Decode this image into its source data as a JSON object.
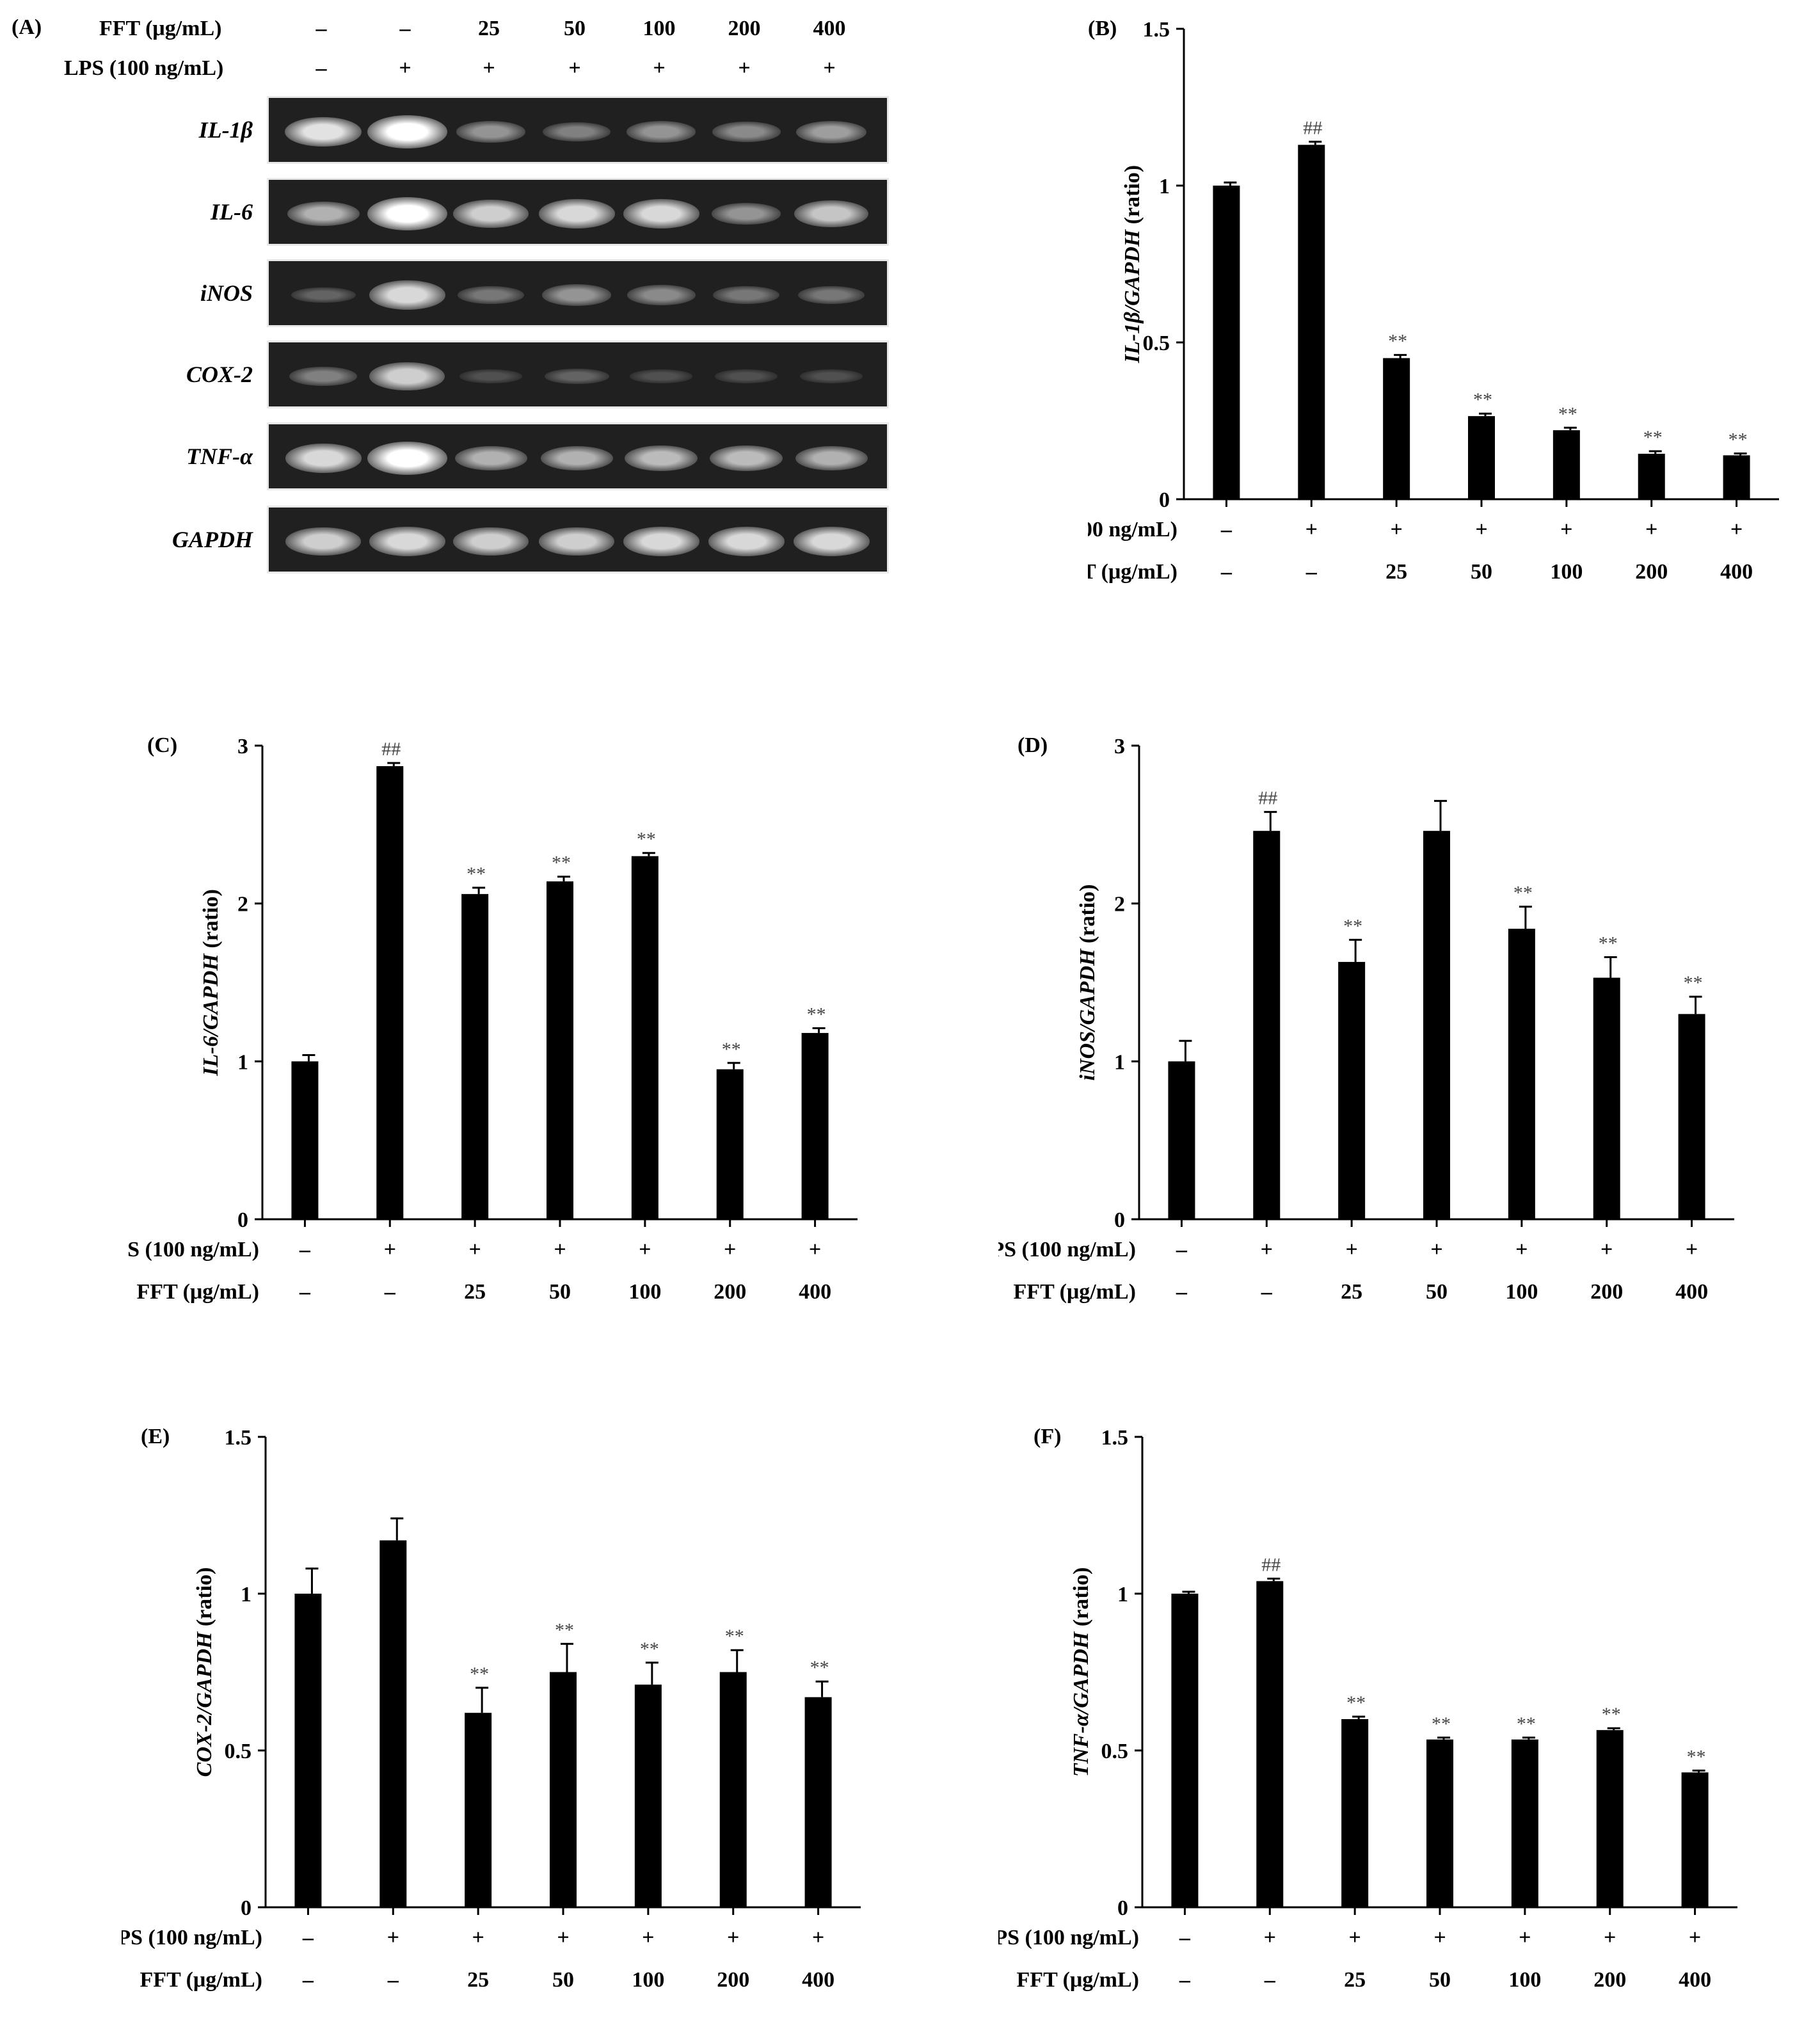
{
  "panel_labels": [
    "(A)",
    "(B)",
    "(C)",
    "(D)",
    "(E)",
    "(F)"
  ],
  "gel": {
    "rows": [
      {
        "label": "IL-1β",
        "bands": [
          0.85,
          1.0,
          0.45,
          0.35,
          0.45,
          0.4,
          0.5
        ]
      },
      {
        "label": "IL-6",
        "bands": [
          0.6,
          1.0,
          0.75,
          0.8,
          0.8,
          0.45,
          0.7
        ]
      },
      {
        "label": "iNOS",
        "bands": [
          0.2,
          0.8,
          0.3,
          0.45,
          0.4,
          0.3,
          0.3
        ]
      },
      {
        "label": "COX-2",
        "bands": [
          0.35,
          0.75,
          0.1,
          0.2,
          0.1,
          0.1,
          0.1
        ]
      },
      {
        "label": "TNF-α",
        "bands": [
          0.8,
          1.0,
          0.6,
          0.6,
          0.65,
          0.65,
          0.6
        ]
      },
      {
        "label": "GAPDH",
        "bands": [
          0.75,
          0.8,
          0.75,
          0.75,
          0.8,
          0.8,
          0.8
        ]
      }
    ]
  },
  "treatments": {
    "fft_label": "FFT (μg/mL)",
    "lps_label": "LPS (100 ng/mL)",
    "fft": [
      "–",
      "–",
      "25",
      "50",
      "100",
      "200",
      "400"
    ],
    "lps": [
      "–",
      "+",
      "+",
      "+",
      "+",
      "+",
      "+"
    ]
  },
  "chart_data": [
    {
      "type": "bar",
      "panel": "(B)",
      "ylabel_italic": "IL-1β/GAPDH",
      "ylabel_rest": " (ratio)",
      "ylim": [
        0,
        1.5
      ],
      "yticks": [
        "0",
        "0.5",
        "1",
        "1.5"
      ],
      "ytick_values": [
        0,
        0.5,
        1,
        1.5
      ],
      "values": [
        1.0,
        1.13,
        0.45,
        0.265,
        0.22,
        0.145,
        0.14
      ],
      "errors": [
        0.01,
        0.01,
        0.01,
        0.008,
        0.008,
        0.008,
        0.006
      ],
      "marks": [
        "",
        "##",
        "**",
        "**",
        "**",
        "**",
        "**"
      ]
    },
    {
      "type": "bar",
      "panel": "(C)",
      "ylabel_italic": "IL-6/GAPDH",
      "ylabel_rest": " (ratio)",
      "ylim": [
        0,
        3
      ],
      "yticks": [
        "0",
        "1",
        "2",
        "3"
      ],
      "ytick_values": [
        0,
        1,
        2,
        3
      ],
      "values": [
        1.0,
        2.87,
        2.06,
        2.14,
        2.3,
        0.95,
        1.18
      ],
      "errors": [
        0.04,
        0.02,
        0.04,
        0.03,
        0.02,
        0.04,
        0.03
      ],
      "marks": [
        "",
        "##",
        "**",
        "**",
        "**",
        "**",
        "**"
      ]
    },
    {
      "type": "bar",
      "panel": "(D)",
      "ylabel_italic": "iNOS/GAPDH",
      "ylabel_rest": " (ratio)",
      "ylim": [
        0,
        3
      ],
      "yticks": [
        "0",
        "1",
        "2",
        "3"
      ],
      "ytick_values": [
        0,
        1,
        2,
        3
      ],
      "values": [
        1.0,
        2.46,
        1.63,
        2.46,
        1.84,
        1.53,
        1.3
      ],
      "errors": [
        0.13,
        0.12,
        0.14,
        0.19,
        0.14,
        0.13,
        0.11
      ],
      "marks": [
        "",
        "##",
        "**",
        "",
        "**",
        "**",
        "**"
      ]
    },
    {
      "type": "bar",
      "panel": "(E)",
      "ylabel_italic": "COX-2/GAPDH",
      "ylabel_rest": " (ratio)",
      "ylim": [
        0,
        1.5
      ],
      "yticks": [
        "0",
        "0.5",
        "1",
        "1.5"
      ],
      "ytick_values": [
        0,
        0.5,
        1,
        1.5
      ],
      "values": [
        1.0,
        1.17,
        0.62,
        0.75,
        0.71,
        0.75,
        0.67
      ],
      "errors": [
        0.08,
        0.07,
        0.08,
        0.09,
        0.07,
        0.07,
        0.05
      ],
      "marks": [
        "",
        "",
        "**",
        "**",
        "**",
        "**",
        "**"
      ]
    },
    {
      "type": "bar",
      "panel": "(F)",
      "ylabel_italic": "TNF-α/GAPDH",
      "ylabel_rest": " (ratio)",
      "ylim": [
        0,
        1.5
      ],
      "yticks": [
        "0",
        "0.5",
        "1",
        "1.5"
      ],
      "ytick_values": [
        0,
        0.5,
        1,
        1.5
      ],
      "values": [
        1.0,
        1.04,
        0.6,
        0.535,
        0.535,
        0.565,
        0.43
      ],
      "errors": [
        0.006,
        0.008,
        0.008,
        0.006,
        0.006,
        0.006,
        0.006
      ],
      "marks": [
        "",
        "##",
        "**",
        "**",
        "**",
        "**",
        "**"
      ]
    }
  ]
}
